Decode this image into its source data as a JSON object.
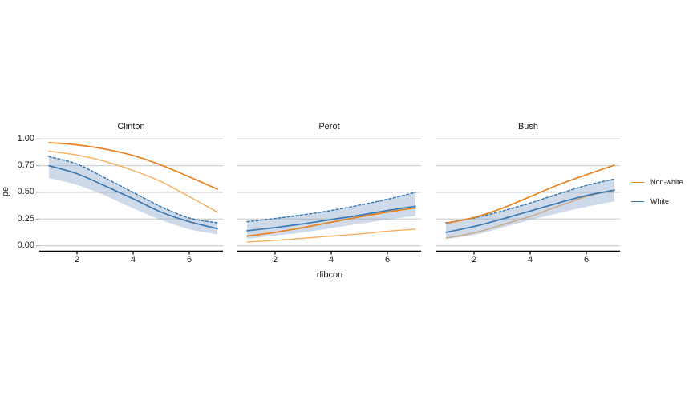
{
  "figure": {
    "y_axis_title": "pe",
    "x_axis_title": "rlibcon",
    "y_tick_labels": [
      "1.00",
      "0.75",
      "0.50",
      "0.25",
      "0.00"
    ],
    "y_tick_values": [
      1.0,
      0.75,
      0.5,
      0.25,
      0.0
    ],
    "x_tick_labels": [
      "2",
      "4",
      "6"
    ],
    "x_tick_values": [
      2,
      4,
      6
    ],
    "legend": {
      "items": [
        {
          "label": "Non-white",
          "color": "#E8821E"
        },
        {
          "label": "White",
          "color": "#3A79B2"
        }
      ]
    },
    "colors": {
      "orange_dark": "#E8821E",
      "orange_light": "#F9AD59",
      "blue": "#3A79B2",
      "ribbon_fill": "rgba(125,159,198,0.38)",
      "gridline": "#D2D2D2",
      "axis_line": "#000000",
      "y_tick_mark": "#A8A8A8",
      "text": "#1A1A1A",
      "panel_background": "#FFFFFF"
    }
  },
  "chart_data": {
    "type": "line",
    "title": "",
    "xlabel": "rlibcon",
    "ylabel": "pe",
    "x": [
      1,
      2,
      3,
      4,
      5,
      6,
      7
    ],
    "xlim": [
      1,
      7
    ],
    "ylim": [
      0,
      1
    ],
    "grid": "horizontal-only",
    "legend_position": "right",
    "legend_entries": [
      "Non-white",
      "White"
    ],
    "facets": [
      {
        "title": "Clinton",
        "series": [
          {
            "id": "nonwhite-dark",
            "legend": "Non-white",
            "linetype": "solid",
            "color_key": "orange_dark",
            "values": [
              0.965,
              0.945,
              0.905,
              0.845,
              0.755,
              0.645,
              0.53
            ]
          },
          {
            "id": "nonwhite-light",
            "legend": "Non-white",
            "linetype": "solid",
            "color_key": "orange_light",
            "values": [
              0.885,
              0.85,
              0.79,
              0.705,
              0.6,
              0.46,
              0.315
            ]
          },
          {
            "id": "white-estimate",
            "legend": "White",
            "linetype": "solid",
            "color_key": "blue",
            "values": [
              0.75,
              0.675,
              0.56,
              0.44,
              0.315,
              0.225,
              0.16
            ]
          },
          {
            "id": "white-upper",
            "legend": "White",
            "linetype": "dashed",
            "color_key": "blue",
            "values": [
              0.835,
              0.765,
              0.635,
              0.5,
              0.365,
              0.26,
              0.215
            ]
          }
        ],
        "ribbon": {
          "legend": "White",
          "upper": [
            0.835,
            0.765,
            0.635,
            0.5,
            0.365,
            0.26,
            0.215
          ],
          "lower": [
            0.635,
            0.57,
            0.47,
            0.35,
            0.24,
            0.155,
            0.105
          ]
        }
      },
      {
        "title": "Perot",
        "series": [
          {
            "id": "nonwhite-dark",
            "legend": "Non-white",
            "linetype": "solid",
            "color_key": "orange_dark",
            "values": [
              0.09,
              0.125,
              0.17,
              0.22,
              0.27,
              0.315,
              0.355
            ]
          },
          {
            "id": "nonwhite-light",
            "legend": "Non-white",
            "linetype": "solid",
            "color_key": "orange_light",
            "values": [
              0.035,
              0.05,
              0.07,
              0.09,
              0.11,
              0.135,
              0.155
            ]
          },
          {
            "id": "white-estimate",
            "legend": "White",
            "linetype": "solid",
            "color_key": "blue",
            "values": [
              0.14,
              0.17,
              0.205,
              0.245,
              0.285,
              0.33,
              0.37
            ]
          },
          {
            "id": "white-upper",
            "legend": "White",
            "linetype": "dashed",
            "color_key": "blue",
            "values": [
              0.225,
              0.255,
              0.29,
              0.33,
              0.38,
              0.435,
              0.5
            ]
          }
        ],
        "ribbon": {
          "legend": "White",
          "upper": [
            0.225,
            0.255,
            0.29,
            0.33,
            0.38,
            0.435,
            0.5
          ],
          "lower": [
            0.065,
            0.095,
            0.125,
            0.165,
            0.205,
            0.245,
            0.28
          ]
        }
      },
      {
        "title": "Bush",
        "series": [
          {
            "id": "nonwhite-dark",
            "legend": "Non-white",
            "linetype": "solid",
            "color_key": "orange_dark",
            "values": [
              0.21,
              0.265,
              0.35,
              0.46,
              0.57,
              0.665,
              0.755
            ]
          },
          {
            "id": "nonwhite-light",
            "legend": "Non-white",
            "linetype": "solid",
            "color_key": "orange_light",
            "values": [
              0.07,
              0.12,
              0.195,
              0.275,
              0.37,
              0.46,
              0.525
            ]
          },
          {
            "id": "white-estimate",
            "legend": "White",
            "linetype": "solid",
            "color_key": "blue",
            "values": [
              0.125,
              0.18,
              0.25,
              0.325,
              0.4,
              0.47,
              0.52
            ]
          },
          {
            "id": "white-upper",
            "legend": "White",
            "linetype": "dashed",
            "color_key": "blue",
            "values": [
              0.215,
              0.26,
              0.325,
              0.4,
              0.485,
              0.565,
              0.625
            ]
          }
        ],
        "ribbon": {
          "legend": "White",
          "upper": [
            0.215,
            0.26,
            0.325,
            0.4,
            0.485,
            0.565,
            0.625
          ],
          "lower": [
            0.065,
            0.1,
            0.17,
            0.24,
            0.305,
            0.365,
            0.415
          ]
        }
      }
    ]
  }
}
